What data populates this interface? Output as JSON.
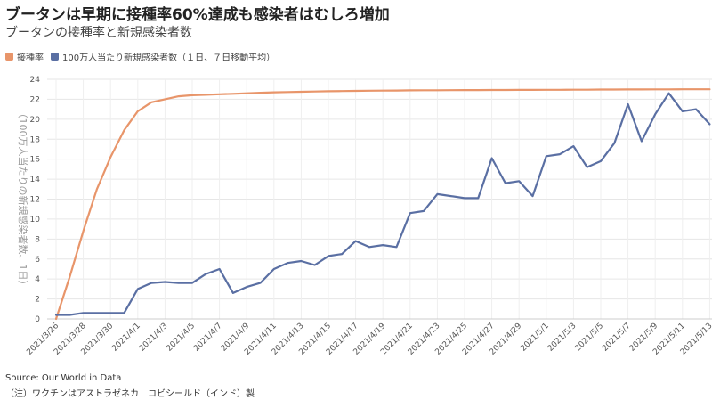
{
  "header": {
    "title": "ブータンは早期に接種率60%達成も感染者はむしろ増加",
    "subtitle": "ブータンの接種率と新規感染者数"
  },
  "footer": {
    "source": "Source: Our World in Data",
    "note": "（注）ワクチンはアストラゼネカ　コビシールド（インド）製"
  },
  "chart_data": {
    "type": "line",
    "x": [
      "2021/3/26",
      "2021/3/27",
      "2021/3/28",
      "2021/3/29",
      "2021/3/30",
      "2021/3/31",
      "2021/4/1",
      "2021/4/2",
      "2021/4/3",
      "2021/4/4",
      "2021/4/5",
      "2021/4/6",
      "2021/4/7",
      "2021/4/8",
      "2021/4/9",
      "2021/4/10",
      "2021/4/11",
      "2021/4/12",
      "2021/4/13",
      "2021/4/14",
      "2021/4/15",
      "2021/4/16",
      "2021/4/17",
      "2021/4/18",
      "2021/4/19",
      "2021/4/20",
      "2021/4/21",
      "2021/4/22",
      "2021/4/23",
      "2021/4/24",
      "2021/4/25",
      "2021/4/26",
      "2021/4/27",
      "2021/4/28",
      "2021/4/29",
      "2021/4/30",
      "2021/5/1",
      "2021/5/2",
      "2021/5/3",
      "2021/5/4",
      "2021/5/5",
      "2021/5/6",
      "2021/5/7",
      "2021/5/8",
      "2021/5/9",
      "2021/5/10",
      "2021/5/11",
      "2021/5/12",
      "2021/5/13"
    ],
    "tick_labels": [
      "2021/3/26",
      "2021/3/28",
      "2021/3/30",
      "2021/4/1",
      "2021/4/3",
      "2021/4/5",
      "2021/4/7",
      "2021/4/9",
      "2021/4/11",
      "2021/4/13",
      "2021/4/15",
      "2021/4/17",
      "2021/4/19",
      "2021/4/21",
      "2021/4/23",
      "2021/4/25",
      "2021/4/27",
      "2021/4/29",
      "2021/5/1",
      "2021/5/3",
      "2021/5/5",
      "2021/5/7",
      "2021/5/9",
      "2021/5/11",
      "2021/5/13"
    ],
    "series": [
      {
        "name": "接種率",
        "color": "#e8956a",
        "values": [
          0,
          4.2,
          8.8,
          13.0,
          16.2,
          18.9,
          20.8,
          21.7,
          22.0,
          22.3,
          22.4,
          22.45,
          22.5,
          22.55,
          22.6,
          22.65,
          22.7,
          22.72,
          22.75,
          22.78,
          22.8,
          22.82,
          22.84,
          22.86,
          22.87,
          22.88,
          22.89,
          22.9,
          22.9,
          22.91,
          22.92,
          22.92,
          22.93,
          22.93,
          22.94,
          22.94,
          22.95,
          22.95,
          22.96,
          22.96,
          22.97,
          22.97,
          22.98,
          22.98,
          22.99,
          22.99,
          23.0,
          23.0,
          23.0
        ]
      },
      {
        "name": "100万人当たり新規感染者数（１日、７日移動平均）",
        "color": "#5a6fa3",
        "values": [
          0.4,
          0.4,
          0.6,
          0.6,
          0.6,
          0.6,
          3.0,
          3.6,
          3.7,
          3.6,
          3.6,
          4.5,
          5.0,
          2.6,
          3.2,
          3.6,
          5.0,
          5.6,
          5.8,
          5.4,
          6.3,
          6.5,
          7.8,
          7.2,
          7.4,
          7.2,
          10.6,
          10.8,
          12.5,
          12.3,
          12.1,
          12.1,
          16.1,
          13.6,
          13.8,
          12.3,
          16.3,
          16.5,
          17.3,
          15.2,
          15.8,
          17.6,
          21.5,
          17.8,
          20.5,
          22.6,
          20.8,
          21.0,
          19.5
        ]
      }
    ],
    "ylabel": "（100万人当たりの新規感染者数、1日）",
    "ylim": [
      0,
      24
    ],
    "yticks": [
      0,
      2,
      4,
      6,
      8,
      10,
      12,
      14,
      16,
      18,
      20,
      22,
      24
    ],
    "grid": true,
    "legend": "top-left"
  }
}
